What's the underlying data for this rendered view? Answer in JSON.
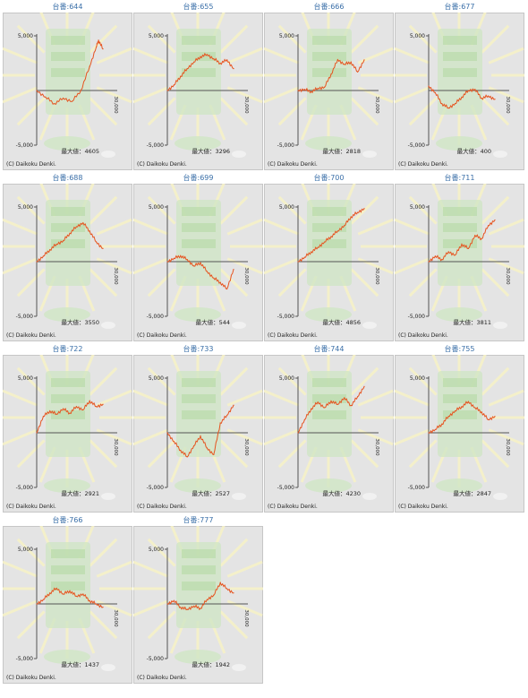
{
  "colors": {
    "panel_bg": "#e4e4e4",
    "panel_border": "#c6c6c6",
    "title": "#3a6fa8",
    "line": "#e6531f",
    "axis": "#555555",
    "watermark": "#cfe6c4"
  },
  "labels": {
    "y_top": "5,000",
    "y_bottom": "-5,000",
    "x_end": "30,000",
    "max_prefix": "最大値：",
    "copyright": "(C) Daikoku Denki."
  },
  "chart_data": [
    {
      "type": "line",
      "title": "台番:644",
      "max_label": "4605",
      "ylim": [
        -5000,
        5000
      ],
      "xlim": [
        0,
        30000
      ],
      "x": [
        0,
        4000,
        8000,
        12000,
        16000,
        20000,
        24000,
        27000,
        28000,
        30000
      ],
      "values": [
        0,
        -600,
        -1200,
        -700,
        -1000,
        0,
        2200,
        4000,
        4605,
        3800
      ]
    },
    {
      "type": "line",
      "title": "台番:655",
      "max_label": "3296",
      "ylim": [
        -5000,
        5000
      ],
      "xlim": [
        0,
        30000
      ],
      "x": [
        0,
        3000,
        6000,
        9000,
        12000,
        15000,
        18000,
        21000,
        24000,
        27000,
        30000
      ],
      "values": [
        0,
        500,
        1300,
        2000,
        2600,
        3100,
        3296,
        2900,
        2500,
        2800,
        2000
      ]
    },
    {
      "type": "line",
      "title": "台番:666",
      "max_label": "2818",
      "ylim": [
        -5000,
        5000
      ],
      "xlim": [
        0,
        30000
      ],
      "x": [
        0,
        3000,
        6000,
        9000,
        12000,
        15000,
        18000,
        21000,
        24000,
        27000,
        30000
      ],
      "values": [
        0,
        100,
        -100,
        200,
        300,
        1500,
        2818,
        2400,
        2600,
        1700,
        2800
      ]
    },
    {
      "type": "line",
      "title": "台番:677",
      "max_label": "400",
      "ylim": [
        -5000,
        5000
      ],
      "xlim": [
        0,
        30000
      ],
      "x": [
        0,
        3000,
        6000,
        9000,
        12000,
        15000,
        18000,
        21000,
        24000,
        27000,
        30000
      ],
      "values": [
        400,
        -200,
        -1200,
        -1600,
        -1200,
        -600,
        0,
        100,
        -700,
        -500,
        -800
      ]
    },
    {
      "type": "line",
      "title": "台番:688",
      "max_label": "3550",
      "ylim": [
        -5000,
        5000
      ],
      "xlim": [
        0,
        30000
      ],
      "x": [
        0,
        3000,
        6000,
        9000,
        12000,
        15000,
        18000,
        21000,
        24000,
        27000,
        30000
      ],
      "values": [
        0,
        500,
        1100,
        1600,
        1900,
        2600,
        3200,
        3550,
        2800,
        1800,
        1200
      ]
    },
    {
      "type": "line",
      "title": "台番:699",
      "max_label": "544",
      "ylim": [
        -5000,
        5000
      ],
      "xlim": [
        0,
        30000
      ],
      "x": [
        0,
        3000,
        6000,
        9000,
        12000,
        15000,
        18000,
        21000,
        24000,
        27000,
        30000
      ],
      "values": [
        0,
        300,
        544,
        200,
        -400,
        -100,
        -900,
        -1500,
        -1900,
        -2500,
        -700
      ]
    },
    {
      "type": "line",
      "title": "台番:700",
      "max_label": "4856",
      "ylim": [
        -5000,
        5000
      ],
      "xlim": [
        0,
        30000
      ],
      "x": [
        0,
        3000,
        6000,
        9000,
        12000,
        15000,
        18000,
        21000,
        24000,
        27000,
        30000
      ],
      "values": [
        0,
        400,
        900,
        1300,
        1800,
        2300,
        2800,
        3300,
        4100,
        4500,
        4856
      ]
    },
    {
      "type": "line",
      "title": "台番:711",
      "max_label": "3811",
      "ylim": [
        -5000,
        5000
      ],
      "xlim": [
        0,
        30000
      ],
      "x": [
        0,
        3000,
        6000,
        9000,
        12000,
        15000,
        18000,
        21000,
        24000,
        27000,
        30000
      ],
      "values": [
        0,
        500,
        200,
        900,
        600,
        1600,
        1200,
        2400,
        2100,
        3300,
        3811
      ]
    },
    {
      "type": "line",
      "title": "台番:722",
      "max_label": "2921",
      "ylim": [
        -5000,
        5000
      ],
      "xlim": [
        0,
        30000
      ],
      "x": [
        0,
        3000,
        6000,
        9000,
        12000,
        15000,
        18000,
        21000,
        24000,
        27000,
        30000
      ],
      "values": [
        0,
        1500,
        2000,
        1700,
        2200,
        1800,
        2400,
        2100,
        2921,
        2400,
        2600
      ]
    },
    {
      "type": "line",
      "title": "台番:733",
      "max_label": "2527",
      "ylim": [
        -5000,
        5000
      ],
      "xlim": [
        0,
        30000
      ],
      "x": [
        0,
        3000,
        6000,
        9000,
        12000,
        15000,
        18000,
        21000,
        24000,
        27000,
        30000
      ],
      "values": [
        0,
        -800,
        -1600,
        -2200,
        -1200,
        -300,
        -1400,
        -2000,
        900,
        1600,
        2527
      ]
    },
    {
      "type": "line",
      "title": "台番:744",
      "max_label": "4230",
      "ylim": [
        -5000,
        5000
      ],
      "xlim": [
        0,
        30000
      ],
      "x": [
        0,
        3000,
        6000,
        9000,
        12000,
        15000,
        18000,
        21000,
        24000,
        27000,
        30000
      ],
      "values": [
        0,
        1200,
        2200,
        2800,
        2300,
        2900,
        2600,
        3200,
        2500,
        3300,
        4230
      ]
    },
    {
      "type": "line",
      "title": "台番:755",
      "max_label": "2847",
      "ylim": [
        -5000,
        5000
      ],
      "xlim": [
        0,
        30000
      ],
      "x": [
        0,
        3000,
        6000,
        9000,
        12000,
        15000,
        18000,
        21000,
        24000,
        27000,
        30000
      ],
      "values": [
        0,
        300,
        800,
        1500,
        2000,
        2400,
        2847,
        2300,
        1900,
        1200,
        1500
      ]
    },
    {
      "type": "line",
      "title": "台番:766",
      "max_label": "1437",
      "ylim": [
        -5000,
        5000
      ],
      "xlim": [
        0,
        30000
      ],
      "x": [
        0,
        3000,
        6000,
        9000,
        12000,
        15000,
        18000,
        21000,
        24000,
        27000,
        30000
      ],
      "values": [
        0,
        400,
        1000,
        1437,
        900,
        1200,
        700,
        900,
        300,
        0,
        -300
      ]
    },
    {
      "type": "line",
      "title": "台番:777",
      "max_label": "1942",
      "ylim": [
        -5000,
        5000
      ],
      "xlim": [
        0,
        30000
      ],
      "x": [
        0,
        3000,
        6000,
        9000,
        12000,
        15000,
        18000,
        21000,
        24000,
        27000,
        30000
      ],
      "values": [
        0,
        300,
        -300,
        -500,
        -200,
        -400,
        400,
        800,
        1942,
        1400,
        1000
      ]
    }
  ]
}
